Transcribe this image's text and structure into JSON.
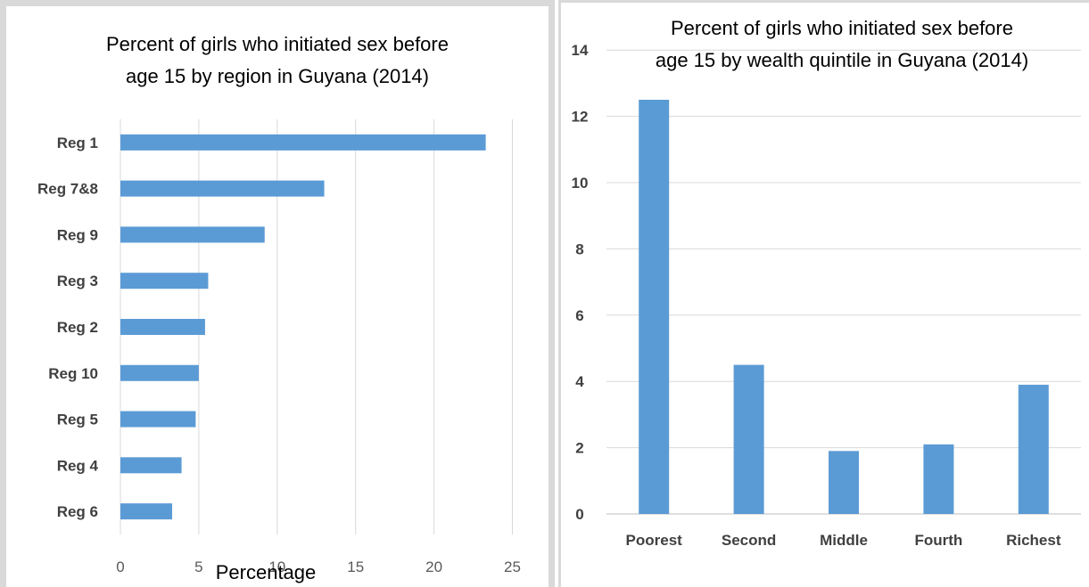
{
  "chart_data": [
    {
      "type": "bar",
      "orientation": "horizontal",
      "title_lines": [
        "Percent of girls who initiated sex before",
        "age 15 by region in Guyana (2014)"
      ],
      "categories": [
        "Reg 1",
        "Reg 7&8",
        "Reg 9",
        "Reg 3",
        "Reg 2",
        "Reg 10",
        "Reg 5",
        "Reg 4",
        "Reg 6"
      ],
      "values": [
        23.3,
        13.0,
        9.2,
        5.6,
        5.4,
        5.0,
        4.8,
        3.9,
        3.3
      ],
      "xlabel": "Percentage",
      "ylabel": "",
      "xlim": [
        0,
        25
      ],
      "xticks": [
        "0",
        "5",
        "10",
        "15",
        "20",
        "25"
      ],
      "grid": "vertical",
      "bar_color": "#5b9bd5"
    },
    {
      "type": "bar",
      "orientation": "vertical",
      "title_lines": [
        "Percent of girls who initiated sex before",
        "age 15 by wealth quintile in Guyana (2014)"
      ],
      "categories": [
        "Poorest",
        "Second",
        "Middle",
        "Fourth",
        "Richest"
      ],
      "values": [
        12.5,
        4.5,
        1.9,
        2.1,
        3.9
      ],
      "xlabel": "",
      "ylabel": "",
      "ylim": [
        0,
        14
      ],
      "yticks": [
        "0",
        "2",
        "4",
        "6",
        "8",
        "10",
        "12",
        "14"
      ],
      "grid": "horizontal",
      "bar_color": "#5b9bd5"
    }
  ]
}
